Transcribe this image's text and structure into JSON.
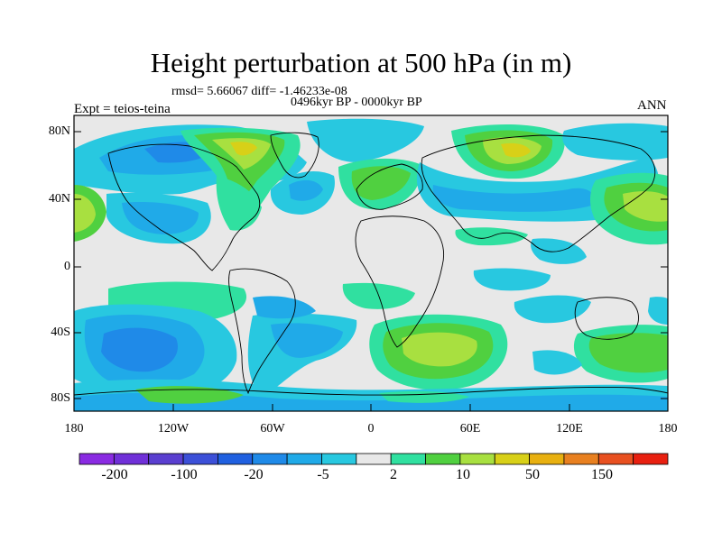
{
  "title": "Height perturbation at 500 hPa (in m)",
  "stats": "rmsd= 5.66067 diff= -1.46233e-08",
  "period": "0496kyr BP - 0000kyr BP",
  "expt": "Expt = teios-teina",
  "season": "ANN",
  "map": {
    "lat_ticks": [
      "80N",
      "40N",
      "0",
      "40S",
      "80S"
    ],
    "lon_ticks": [
      "180",
      "120W",
      "60W",
      "0",
      "60E",
      "120E",
      "180"
    ],
    "background_color": "#e8e8e8"
  },
  "colorbar": {
    "colors": [
      "#8a2be2",
      "#7030d8",
      "#5a3fd0",
      "#3c50d8",
      "#2060e0",
      "#1f8ae8",
      "#20aae8",
      "#28c8e0",
      "#e8e8e8",
      "#30e0a0",
      "#50d040",
      "#a8e040",
      "#d8d018",
      "#e8b010",
      "#e88020",
      "#e85020",
      "#e82010"
    ],
    "labels": [
      "-200",
      "-100",
      "-20",
      "-5",
      "2",
      "10",
      "50",
      "150"
    ]
  }
}
